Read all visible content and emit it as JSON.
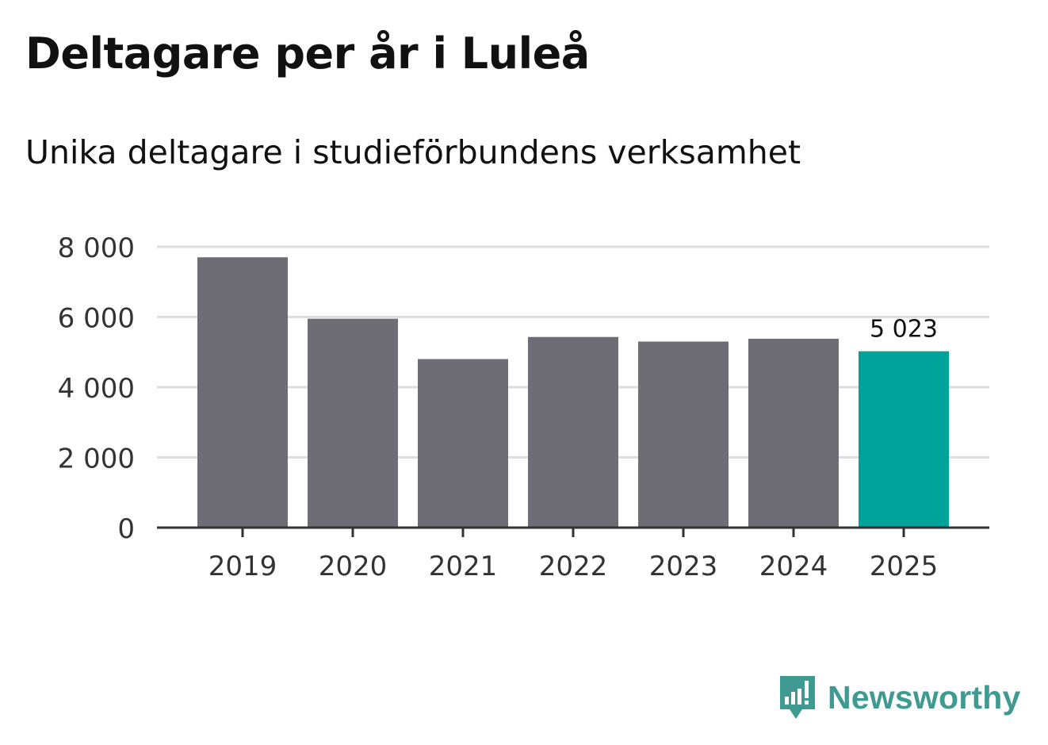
{
  "chart_data": {
    "type": "bar",
    "title": "Deltagare per år i Luleå",
    "subtitle": "Unika deltagare i studieförbundens verksamhet",
    "xlabel": "",
    "ylabel": "",
    "categories": [
      "2019",
      "2020",
      "2021",
      "2022",
      "2023",
      "2024",
      "2025"
    ],
    "values": [
      7700,
      5950,
      4800,
      5430,
      5300,
      5380,
      5023
    ],
    "highlight_index": 6,
    "highlight_label": "5 023",
    "ylim": [
      0,
      8000
    ],
    "yticks": [
      0,
      2000,
      4000,
      6000,
      8000
    ],
    "ytick_labels": [
      "0",
      "2 000",
      "4 000",
      "6 000",
      "8 000"
    ],
    "grid": true,
    "legend": "none",
    "colors": {
      "bar": "#6e6d75",
      "highlight": "#00a39a",
      "grid": "#dedede",
      "axis": "#333333",
      "tick_text": "#333333"
    }
  },
  "brand": {
    "name": "Newsworthy",
    "icon": "newsworthy-logo-icon",
    "color": "#3f9a91"
  }
}
